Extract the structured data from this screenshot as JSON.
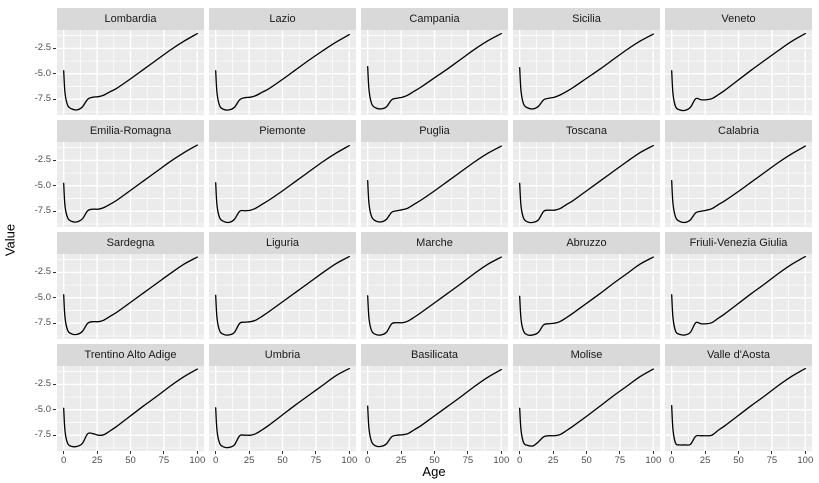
{
  "chart_data": {
    "type": "line",
    "title": "",
    "xlabel": "Age",
    "ylabel": "Value",
    "xlim": [
      0,
      100
    ],
    "ylim": [
      -9.05,
      -0.7
    ],
    "x_ticks": [
      0,
      25,
      50,
      75,
      100
    ],
    "y_ticks": [
      -2.5,
      -5.0,
      -7.5
    ],
    "x_tick_labels": [
      "0",
      "25",
      "50",
      "75",
      "100"
    ],
    "y_tick_labels": [
      "-2.5",
      "-5.0",
      "-7.5"
    ],
    "x_minor_ticks": [
      12.5,
      37.5,
      62.5,
      87.5
    ],
    "y_minor_ticks": [
      -1.25,
      -3.75,
      -6.25,
      -8.75
    ],
    "grid": "white major and minor gridlines on gray panel",
    "legend_position": "none",
    "facet_layout": {
      "rows": 4,
      "cols": 5
    },
    "ages": [
      0,
      1,
      3,
      6,
      10,
      14,
      18,
      22,
      26,
      30,
      35,
      40,
      50,
      60,
      70,
      80,
      90,
      100
    ],
    "facets": [
      {
        "label": "Lombardia",
        "values": [
          -4.7,
          -6.9,
          -8.1,
          -8.45,
          -8.55,
          -8.25,
          -7.5,
          -7.3,
          -7.25,
          -7.1,
          -6.75,
          -6.4,
          -5.5,
          -4.55,
          -3.6,
          -2.65,
          -1.8,
          -1.05
        ]
      },
      {
        "label": "Lazio",
        "values": [
          -4.7,
          -6.9,
          -8.15,
          -8.5,
          -8.55,
          -8.3,
          -7.55,
          -7.35,
          -7.3,
          -7.15,
          -6.8,
          -6.45,
          -5.55,
          -4.6,
          -3.65,
          -2.75,
          -1.9,
          -1.15
        ]
      },
      {
        "label": "Campania",
        "values": [
          -4.3,
          -6.6,
          -7.95,
          -8.35,
          -8.45,
          -8.25,
          -7.55,
          -7.4,
          -7.3,
          -7.1,
          -6.7,
          -6.3,
          -5.4,
          -4.5,
          -3.55,
          -2.6,
          -1.75,
          -1.05
        ]
      },
      {
        "label": "Sicilia",
        "values": [
          -4.4,
          -6.7,
          -8.0,
          -8.35,
          -8.45,
          -8.2,
          -7.55,
          -7.4,
          -7.3,
          -7.1,
          -6.75,
          -6.35,
          -5.45,
          -4.55,
          -3.6,
          -2.65,
          -1.8,
          -1.1
        ]
      },
      {
        "label": "Veneto",
        "values": [
          -4.7,
          -7.0,
          -8.25,
          -8.55,
          -8.6,
          -8.3,
          -7.45,
          -7.55,
          -7.55,
          -7.45,
          -7.05,
          -6.6,
          -5.6,
          -4.6,
          -3.65,
          -2.7,
          -1.8,
          -1.05
        ]
      },
      {
        "label": "Emilia-Romagna",
        "values": [
          -4.75,
          -7.0,
          -8.15,
          -8.5,
          -8.55,
          -8.25,
          -7.45,
          -7.3,
          -7.3,
          -7.15,
          -6.8,
          -6.4,
          -5.45,
          -4.5,
          -3.55,
          -2.6,
          -1.75,
          -1.0
        ]
      },
      {
        "label": "Piemonte",
        "values": [
          -4.7,
          -6.95,
          -8.15,
          -8.5,
          -8.6,
          -8.3,
          -7.5,
          -7.45,
          -7.4,
          -7.2,
          -6.8,
          -6.4,
          -5.5,
          -4.55,
          -3.6,
          -2.65,
          -1.8,
          -1.05
        ]
      },
      {
        "label": "Puglia",
        "values": [
          -4.5,
          -6.8,
          -8.05,
          -8.45,
          -8.55,
          -8.3,
          -7.6,
          -7.45,
          -7.35,
          -7.2,
          -6.8,
          -6.4,
          -5.5,
          -4.55,
          -3.6,
          -2.65,
          -1.8,
          -1.1
        ]
      },
      {
        "label": "Toscana",
        "values": [
          -4.75,
          -7.0,
          -8.2,
          -8.55,
          -8.6,
          -8.35,
          -7.5,
          -7.4,
          -7.4,
          -7.25,
          -6.85,
          -6.45,
          -5.5,
          -4.55,
          -3.6,
          -2.65,
          -1.75,
          -1.05
        ]
      },
      {
        "label": "Calabria",
        "values": [
          -4.5,
          -6.8,
          -8.1,
          -8.5,
          -8.6,
          -8.35,
          -7.65,
          -7.5,
          -7.4,
          -7.25,
          -6.85,
          -6.45,
          -5.55,
          -4.6,
          -3.65,
          -2.7,
          -1.85,
          -1.1
        ]
      },
      {
        "label": "Sardegna",
        "values": [
          -4.7,
          -6.95,
          -8.2,
          -8.55,
          -8.6,
          -8.3,
          -7.5,
          -7.35,
          -7.35,
          -7.2,
          -6.8,
          -6.4,
          -5.45,
          -4.5,
          -3.55,
          -2.6,
          -1.7,
          -1.0
        ]
      },
      {
        "label": "Liguria",
        "values": [
          -4.75,
          -7.0,
          -8.25,
          -8.6,
          -8.65,
          -8.4,
          -7.5,
          -7.4,
          -7.35,
          -7.2,
          -6.8,
          -6.35,
          -5.4,
          -4.45,
          -3.5,
          -2.55,
          -1.65,
          -0.95
        ]
      },
      {
        "label": "Marche",
        "values": [
          -4.8,
          -7.05,
          -8.25,
          -8.6,
          -8.65,
          -8.4,
          -7.55,
          -7.45,
          -7.45,
          -7.3,
          -6.9,
          -6.45,
          -5.5,
          -4.55,
          -3.6,
          -2.6,
          -1.7,
          -1.0
        ]
      },
      {
        "label": "Abruzzo",
        "values": [
          -4.85,
          -7.1,
          -8.3,
          -8.65,
          -8.65,
          -8.4,
          -7.65,
          -7.55,
          -7.5,
          -7.35,
          -6.95,
          -6.5,
          -5.55,
          -4.6,
          -3.6,
          -2.65,
          -1.7,
          -1.0
        ]
      },
      {
        "label": "Friuli-Venezia Giulia",
        "values": [
          -4.7,
          -7.0,
          -8.3,
          -8.6,
          -8.65,
          -8.4,
          -7.45,
          -7.55,
          -7.55,
          -7.45,
          -7.0,
          -6.55,
          -5.55,
          -4.55,
          -3.6,
          -2.6,
          -1.7,
          -0.95
        ]
      },
      {
        "label": "Trentino Alto Adige",
        "values": [
          -4.85,
          -7.1,
          -8.3,
          -8.6,
          -8.6,
          -8.3,
          -7.35,
          -7.35,
          -7.5,
          -7.45,
          -7.05,
          -6.6,
          -5.6,
          -4.6,
          -3.65,
          -2.65,
          -1.75,
          -1.0
        ]
      },
      {
        "label": "Umbria",
        "values": [
          -4.8,
          -7.05,
          -8.3,
          -8.65,
          -8.7,
          -8.45,
          -7.55,
          -7.5,
          -7.5,
          -7.35,
          -6.95,
          -6.5,
          -5.5,
          -4.5,
          -3.55,
          -2.6,
          -1.65,
          -0.95
        ]
      },
      {
        "label": "Basilicata",
        "values": [
          -4.65,
          -6.9,
          -8.15,
          -8.55,
          -8.6,
          -8.35,
          -7.65,
          -7.5,
          -7.45,
          -7.35,
          -6.95,
          -6.55,
          -5.6,
          -4.65,
          -3.7,
          -2.7,
          -1.8,
          -1.05
        ]
      },
      {
        "label": "Molise",
        "values": [
          -4.85,
          -7.0,
          -8.25,
          -8.5,
          -8.55,
          -8.15,
          -7.65,
          -7.55,
          -7.55,
          -7.45,
          -7.05,
          -6.6,
          -5.65,
          -4.65,
          -3.65,
          -2.7,
          -1.75,
          -1.0
        ]
      },
      {
        "label": "Valle d'Aosta",
        "values": [
          -4.6,
          -7.0,
          -8.3,
          -8.45,
          -8.45,
          -8.4,
          -7.6,
          -7.55,
          -7.55,
          -7.5,
          -7.0,
          -6.55,
          -5.55,
          -4.55,
          -3.6,
          -2.6,
          -1.7,
          -0.95
        ]
      }
    ]
  },
  "colors": {
    "figure_bg": "#FFFFFF",
    "panel_bg": "#EBEBEB",
    "strip_bg": "#D9D9D9",
    "strip_text": "#1A1A1A",
    "gridline": "#FFFFFF",
    "line": "#000000",
    "tick_label": "#4D4D4D",
    "tick_mark": "#333333",
    "axis_title": "#000000"
  }
}
